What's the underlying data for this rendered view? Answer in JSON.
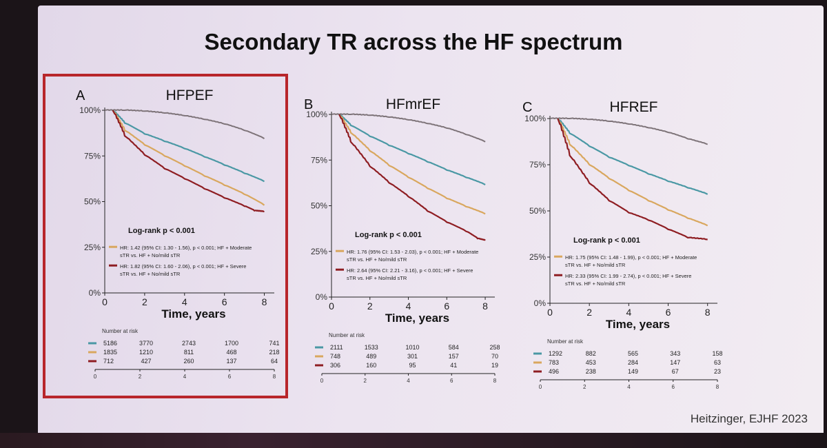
{
  "slide": {
    "title": "Secondary TR across the HF spectrum",
    "citation": "Heitzinger, EJHF 2023"
  },
  "colors": {
    "gray": "#7d7378",
    "teal": "#4a98a4",
    "orange": "#d9a75e",
    "red": "#8e1d22",
    "highlight_border": "#b8262b"
  },
  "chart_data": [
    {
      "type": "line",
      "panel_letter": "A",
      "title": "HFPEF",
      "highlighted": true,
      "xlabel": "Time, years",
      "ylabel": "",
      "xlim": [
        0,
        8.5
      ],
      "ylim": [
        0,
        100
      ],
      "x_ticks": [
        "0",
        "2",
        "4",
        "6",
        "8"
      ],
      "y_ticks": [
        "0%",
        "25%",
        "50%",
        "75%",
        "100%"
      ],
      "series": [
        {
          "name": "reference",
          "color": "gray",
          "x": [
            0,
            1,
            2,
            3,
            4,
            5,
            6,
            7,
            8
          ],
          "y": [
            100,
            100,
            99.5,
            98.5,
            97,
            95,
            92.5,
            89,
            84.5
          ]
        },
        {
          "name": "No/mild sTR",
          "color": "teal",
          "x": [
            0.4,
            1,
            2,
            3,
            4,
            5,
            6,
            7,
            8
          ],
          "y": [
            100,
            93,
            87,
            83,
            79,
            74.5,
            70,
            65.5,
            61
          ]
        },
        {
          "name": "Moderate sTR",
          "color": "orange",
          "x": [
            0.4,
            1,
            2,
            3,
            4,
            5,
            6,
            7,
            8
          ],
          "y": [
            100,
            89,
            81,
            75,
            69.5,
            64,
            59,
            54,
            48
          ]
        },
        {
          "name": "Severe sTR",
          "color": "red",
          "x": [
            0.4,
            1,
            2,
            3,
            4,
            5,
            6,
            7,
            7.5,
            8
          ],
          "y": [
            100,
            86,
            75.5,
            68,
            62.5,
            57,
            52,
            47.5,
            45,
            44.5
          ]
        }
      ],
      "annotations": {
        "logrank": "Log-rank p < 0.001",
        "hr_moderate_line1": "HR: 1.42 (95% CI: 1.30 - 1.56), p < 0.001; HF + Moderate",
        "hr_moderate_line2": "sTR vs. HF + No/mild sTR",
        "hr_severe_line1": "HR: 1.82 (95% CI: 1.60 - 2.06), p < 0.001; HF + Severe",
        "hr_severe_line2": "sTR vs. HF + No/mild sTR"
      },
      "risk_table": {
        "title": "Number at risk",
        "x_ticks": [
          "0",
          "2",
          "4",
          "6",
          "8"
        ],
        "rows": [
          {
            "color": "teal",
            "values": [
              "5186",
              "3770",
              "2743",
              "1700",
              "741"
            ]
          },
          {
            "color": "orange",
            "values": [
              "1835",
              "1210",
              "811",
              "468",
              "218"
            ]
          },
          {
            "color": "red",
            "values": [
              "712",
              "427",
              "260",
              "137",
              "64"
            ]
          }
        ]
      }
    },
    {
      "type": "line",
      "panel_letter": "B",
      "title": "HFmrEF",
      "highlighted": false,
      "xlabel": "Time, years",
      "ylabel": "",
      "xlim": [
        0,
        8.5
      ],
      "ylim": [
        0,
        100
      ],
      "x_ticks": [
        "0",
        "2",
        "4",
        "6",
        "8"
      ],
      "y_ticks": [
        "0%",
        "25%",
        "50%",
        "75%",
        "100%"
      ],
      "series": [
        {
          "name": "reference",
          "color": "gray",
          "x": [
            0,
            1,
            2,
            3,
            4,
            5,
            6,
            7,
            8
          ],
          "y": [
            100,
            100,
            99.5,
            98.5,
            97,
            95,
            92.5,
            89,
            85
          ]
        },
        {
          "name": "No/mild sTR",
          "color": "teal",
          "x": [
            0.4,
            1,
            2,
            3,
            4,
            5,
            6,
            7,
            8
          ],
          "y": [
            100,
            94,
            88,
            83,
            78.5,
            74,
            69.5,
            65.5,
            61.5
          ]
        },
        {
          "name": "Moderate sTR",
          "color": "orange",
          "x": [
            0.4,
            1,
            2,
            3,
            4,
            5,
            6,
            7,
            8
          ],
          "y": [
            100,
            90,
            80,
            72,
            65.5,
            59.5,
            54,
            49.5,
            45.5
          ]
        },
        {
          "name": "Severe sTR",
          "color": "red",
          "x": [
            0.4,
            1,
            2,
            3,
            4,
            5,
            6,
            7,
            7.6,
            8
          ],
          "y": [
            100,
            85,
            71.5,
            62.5,
            55,
            47,
            41,
            36,
            32,
            31
          ]
        }
      ],
      "annotations": {
        "logrank": "Log-rank p < 0.001",
        "hr_moderate_line1": "HR: 1.76 (95% CI: 1.53 - 2.03), p < 0.001; HF + Moderate",
        "hr_moderate_line2": "sTR vs. HF + No/mild sTR",
        "hr_severe_line1": "HR: 2.64 (95% CI: 2.21 - 3.16), p < 0.001; HF + Severe",
        "hr_severe_line2": "sTR vs. HF + No/mild sTR"
      },
      "risk_table": {
        "title": "Number at risk",
        "x_ticks": [
          "0",
          "2",
          "4",
          "6",
          "8"
        ],
        "rows": [
          {
            "color": "teal",
            "values": [
              "2111",
              "1533",
              "1010",
              "584",
              "258"
            ]
          },
          {
            "color": "orange",
            "values": [
              "748",
              "489",
              "301",
              "157",
              "70"
            ]
          },
          {
            "color": "red",
            "values": [
              "306",
              "160",
              "95",
              "41",
              "19"
            ]
          }
        ]
      }
    },
    {
      "type": "line",
      "panel_letter": "C",
      "title": "HFREF",
      "highlighted": false,
      "xlabel": "Time, years",
      "ylabel": "",
      "xlim": [
        0,
        8.5
      ],
      "ylim": [
        0,
        100
      ],
      "x_ticks": [
        "0",
        "2",
        "4",
        "6",
        "8"
      ],
      "y_ticks": [
        "0%",
        "25%",
        "50%",
        "75%",
        "100%"
      ],
      "series": [
        {
          "name": "reference",
          "color": "gray",
          "x": [
            0,
            1,
            2,
            3,
            4,
            5,
            6,
            7,
            8
          ],
          "y": [
            100,
            100,
            99.5,
            98.5,
            97,
            95,
            92.5,
            89,
            86
          ]
        },
        {
          "name": "No/mild sTR",
          "color": "teal",
          "x": [
            0.4,
            1,
            2,
            3,
            4,
            5,
            6,
            7,
            8
          ],
          "y": [
            100,
            92,
            85,
            79,
            74.5,
            70,
            66,
            62.5,
            59
          ]
        },
        {
          "name": "Moderate sTR",
          "color": "orange",
          "x": [
            0.4,
            1,
            2,
            3,
            4,
            5,
            6,
            7,
            8
          ],
          "y": [
            100,
            86,
            75,
            67.5,
            61,
            55.5,
            50.5,
            46,
            42
          ]
        },
        {
          "name": "Severe sTR",
          "color": "red",
          "x": [
            0.4,
            1,
            2,
            3,
            4,
            5,
            6,
            7,
            8
          ],
          "y": [
            100,
            80,
            65,
            55.5,
            49,
            45,
            40,
            35.5,
            34.5
          ]
        }
      ],
      "annotations": {
        "logrank": "Log-rank p < 0.001",
        "hr_moderate_line1": "HR: 1.75 (95% CI: 1.48 - 1.99), p < 0.001; HF + Moderate",
        "hr_moderate_line2": "sTR vs. HF + No/mild sTR",
        "hr_severe_line1": "HR: 2.33 (95% CI: 1.99 - 2.74), p < 0.001; HF + Severe",
        "hr_severe_line2": "sTR vs. HF + No/mild sTR"
      },
      "risk_table": {
        "title": "Number at risk",
        "x_ticks": [
          "0",
          "2",
          "4",
          "6",
          "8"
        ],
        "rows": [
          {
            "color": "teal",
            "values": [
              "1292",
              "882",
              "565",
              "343",
              "158"
            ]
          },
          {
            "color": "orange",
            "values": [
              "783",
              "453",
              "284",
              "147",
              "63"
            ]
          },
          {
            "color": "red",
            "values": [
              "496",
              "238",
              "149",
              "67",
              "23"
            ]
          }
        ]
      }
    }
  ]
}
